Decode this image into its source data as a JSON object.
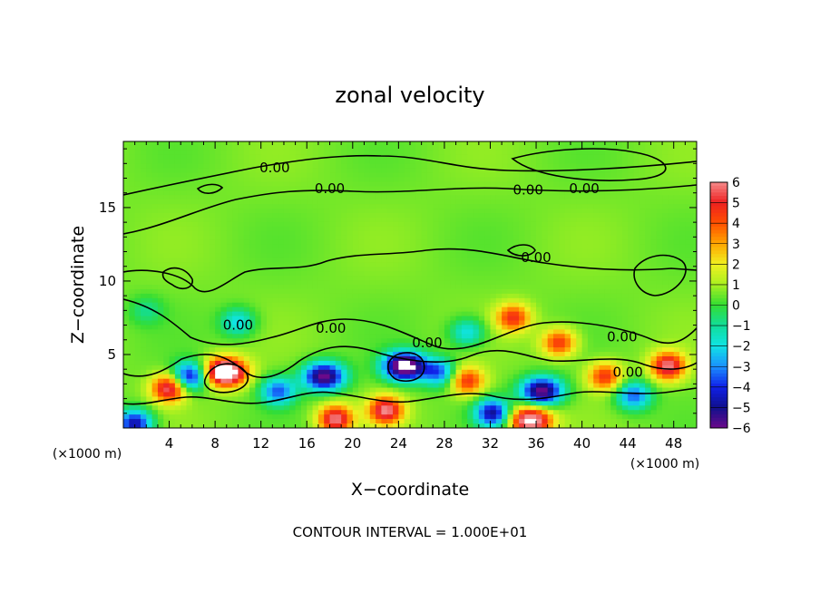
{
  "chart_data": {
    "type": "heatmap",
    "title": "zonal velocity",
    "xlabel": "X−coordinate",
    "ylabel": "Z−coordinate",
    "x_units_left": "(×1000 m)",
    "x_units_right": "(×1000 m)",
    "x_ticks": [
      "4",
      "8",
      "12",
      "16",
      "20",
      "24",
      "28",
      "32",
      "36",
      "40",
      "44",
      "48"
    ],
    "x_tick_values": [
      4,
      8,
      12,
      16,
      20,
      24,
      28,
      32,
      36,
      40,
      44,
      48
    ],
    "y_ticks": [
      "5",
      "10",
      "15"
    ],
    "y_tick_values": [
      5,
      10,
      15
    ],
    "xlim": [
      0,
      50
    ],
    "ylim": [
      0,
      19.5
    ],
    "colorbar": {
      "labels": [
        "6",
        "5",
        "4",
        "3",
        "2",
        "1",
        "0",
        "−1",
        "−2",
        "−3",
        "−4",
        "−5",
        "−6"
      ],
      "values": [
        6,
        5,
        4,
        3,
        2,
        1,
        0,
        -1,
        -2,
        -3,
        -4,
        -5,
        -6
      ],
      "colors": [
        "#f48a8a",
        "#ee2020",
        "#ff5000",
        "#ffa500",
        "#f0f020",
        "#aaf020",
        "#33dd33",
        "#11dd99",
        "#10e4e4",
        "#1a90ff",
        "#1020e8",
        "#10108c",
        "#6a0a8a"
      ]
    },
    "contour_labels": [
      {
        "text": "0.00",
        "x": 13.2,
        "y": 17.7
      },
      {
        "text": "0.00",
        "x": 18.0,
        "y": 16.3
      },
      {
        "text": "0.00",
        "x": 35.3,
        "y": 16.2
      },
      {
        "text": "0.00",
        "x": 40.2,
        "y": 16.3
      },
      {
        "text": "0.00",
        "x": 36.0,
        "y": 11.6
      },
      {
        "text": "0.00",
        "x": 18.1,
        "y": 6.8
      },
      {
        "text": "0.00",
        "x": 26.5,
        "y": 5.8
      },
      {
        "text": "0.00",
        "x": 43.5,
        "y": 6.2
      },
      {
        "text": "0.00",
        "x": 10.0,
        "y": 7.0
      },
      {
        "text": "0.00",
        "x": 44.0,
        "y": 3.8
      }
    ],
    "features": [
      {
        "kind": "max",
        "x": 8.9,
        "y": 3.8,
        "value": 6
      },
      {
        "kind": "max",
        "x": 4.0,
        "y": 2.7,
        "value": 4
      },
      {
        "kind": "max",
        "x": 18.5,
        "y": 0.6,
        "value": 4
      },
      {
        "kind": "max",
        "x": 22.9,
        "y": 1.2,
        "value": 4
      },
      {
        "kind": "max",
        "x": 35.5,
        "y": 0.5,
        "value": 5
      },
      {
        "kind": "max",
        "x": 47.5,
        "y": 4.2,
        "value": 4
      },
      {
        "kind": "max",
        "x": 42.0,
        "y": 3.5,
        "value": 3
      },
      {
        "kind": "max",
        "x": 30.0,
        "y": 3.2,
        "value": 3
      },
      {
        "kind": "max",
        "x": 34.0,
        "y": 7.5,
        "value": 3
      },
      {
        "kind": "max",
        "x": 38.0,
        "y": 5.8,
        "value": 3
      },
      {
        "kind": "min",
        "x": 24.5,
        "y": 4.2,
        "value": -6
      },
      {
        "kind": "min",
        "x": 17.5,
        "y": 3.5,
        "value": -5
      },
      {
        "kind": "min",
        "x": 36.5,
        "y": 2.5,
        "value": -5
      },
      {
        "kind": "min",
        "x": 5.8,
        "y": 3.5,
        "value": -4
      },
      {
        "kind": "min",
        "x": 13.5,
        "y": 2.5,
        "value": -3
      },
      {
        "kind": "min",
        "x": 32.2,
        "y": 1.0,
        "value": -4
      },
      {
        "kind": "min",
        "x": 27.5,
        "y": 3.8,
        "value": -3
      },
      {
        "kind": "min",
        "x": 44.5,
        "y": 2.2,
        "value": -3
      },
      {
        "kind": "min",
        "x": 1.0,
        "y": 0.3,
        "value": -4
      },
      {
        "kind": "min",
        "x": 10.0,
        "y": 7.2,
        "value": -2
      },
      {
        "kind": "min",
        "x": 30.0,
        "y": 6.5,
        "value": -2
      },
      {
        "kind": "min",
        "x": 2.0,
        "y": 8.0,
        "value": -1
      }
    ],
    "footer": "CONTOUR INTERVAL = 1.000E+01",
    "grid": false
  }
}
